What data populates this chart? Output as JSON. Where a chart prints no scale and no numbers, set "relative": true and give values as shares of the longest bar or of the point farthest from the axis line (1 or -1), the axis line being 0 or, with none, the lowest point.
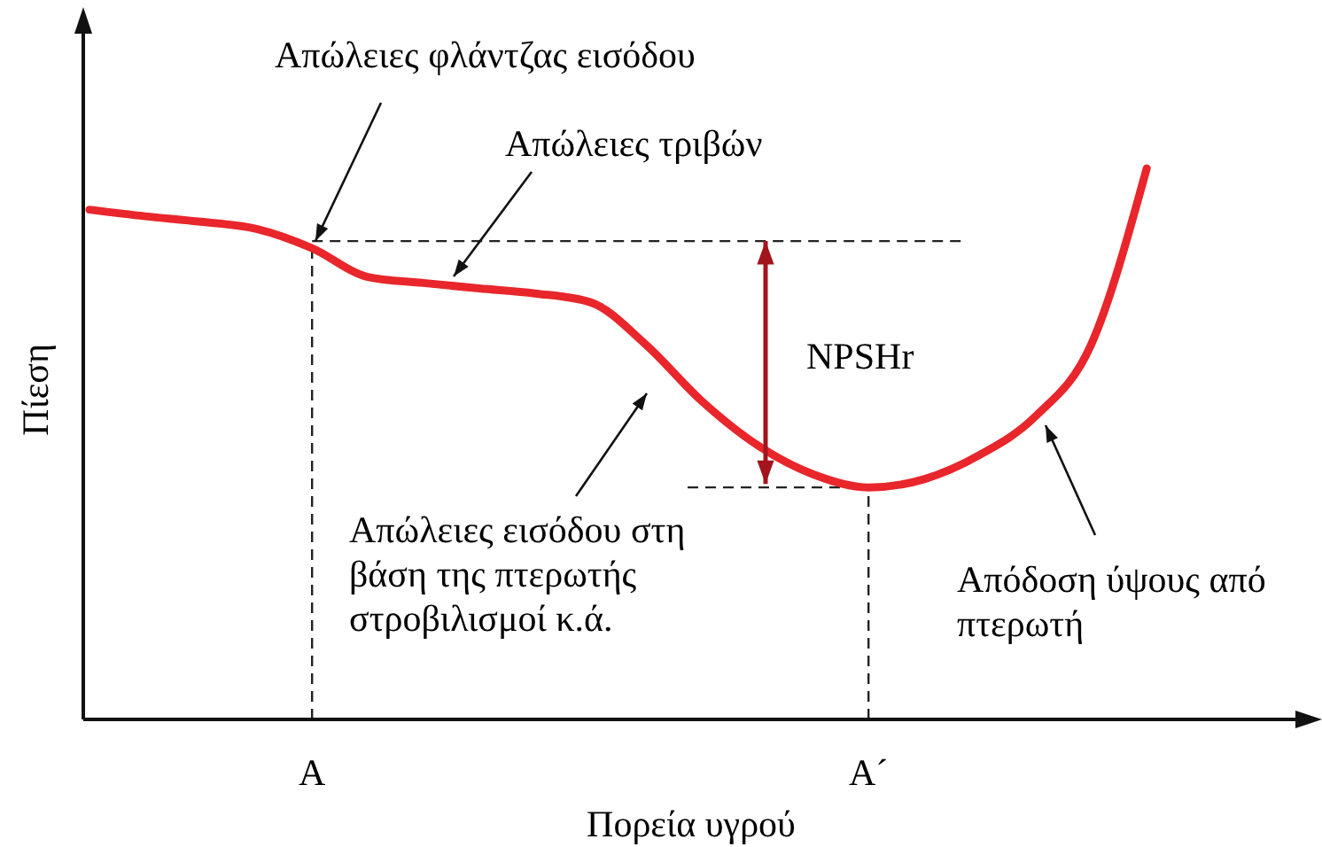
{
  "chart_data": {
    "type": "line",
    "relative": true,
    "xlabel": "Πορεία υγρού",
    "ylabel": "Πίεση",
    "categories": [
      null,
      null,
      null,
      null,
      "A",
      null,
      null,
      null,
      null,
      null,
      null,
      null,
      null,
      null,
      "A´",
      null,
      null,
      null,
      null,
      null
    ],
    "series": [
      {
        "color": "#e8262b",
        "values": [
          0.925,
          0.913,
          0.903,
          0.89,
          0.855,
          0.803,
          0.792,
          0.782,
          0.773,
          0.757,
          0.68,
          0.578,
          0.498,
          0.445,
          0.421,
          0.436,
          0.48,
          0.55,
          0.68,
          1
        ]
      }
    ],
    "annotations": [
      "Απώλειες φλάντζας εισόδου",
      "Απώλειες τριβών",
      "NPSHr",
      "Απώλειες εισόδου στη βάση της πτερωτής στροβιλισμοί κ.ά.",
      "Απόδοση ύψους από πτερωτή"
    ],
    "ref_lines": [
      {
        "axis": "x",
        "value": "A",
        "color": "#222222",
        "line_style": "dashed"
      },
      {
        "axis": "x",
        "value": "A´",
        "color": "#222222",
        "line_style": "dashed"
      },
      {
        "axis": "y",
        "value": 0.868,
        "color": "#222222",
        "line_style": "dashed"
      },
      {
        "axis": "y",
        "value": 0.421,
        "color": "#222222",
        "line_style": "dashed"
      }
    ],
    "grid": false,
    "marker": "none",
    "line_style": "solid"
  }
}
